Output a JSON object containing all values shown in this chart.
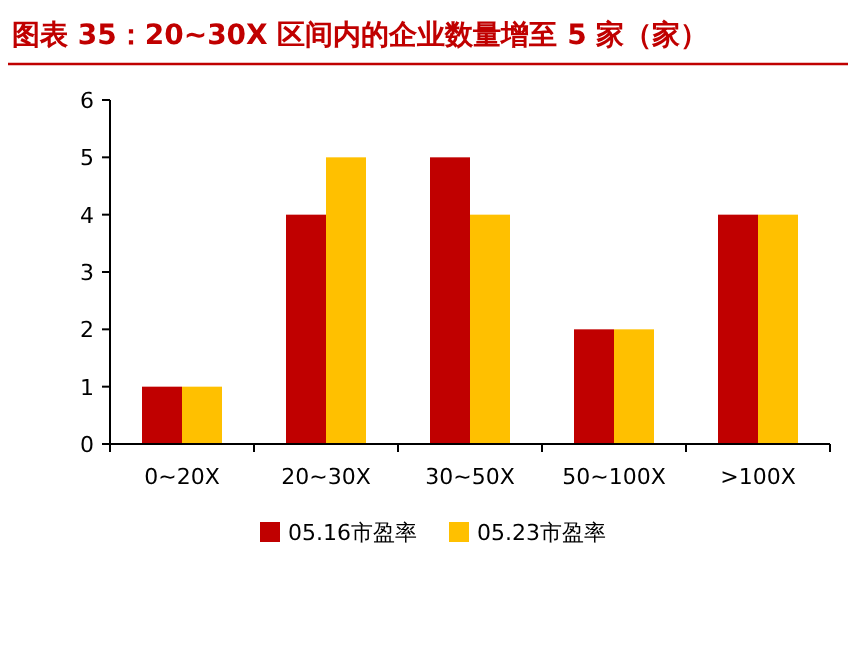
{
  "chart_data": {
    "type": "bar",
    "title": "图表 35：20~30X 区间内的企业数量增至 5 家（家）",
    "categories": [
      "0~20X",
      "20~30X",
      "30~50X",
      "50~100X",
      ">100X"
    ],
    "series": [
      {
        "name": "05.16市盈率",
        "color": "#c00000",
        "values": [
          1,
          4,
          5,
          2,
          4
        ]
      },
      {
        "name": "05.23市盈率",
        "color": "#ffc000",
        "values": [
          1,
          5,
          4,
          2,
          4
        ]
      }
    ],
    "ylim": [
      0,
      6
    ],
    "yticks": [
      0,
      1,
      2,
      3,
      4,
      5,
      6
    ],
    "legend": "bottom",
    "grid": false
  }
}
